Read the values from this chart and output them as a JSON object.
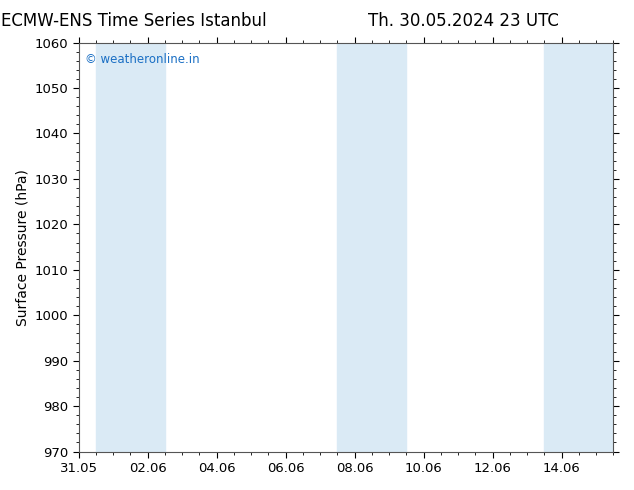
{
  "title_left": "ECMW-ENS Time Series Istanbul",
  "title_right": "Th. 30.05.2024 23 UTC",
  "ylabel": "Surface Pressure (hPa)",
  "ylim": [
    970,
    1060
  ],
  "yticks": [
    970,
    980,
    990,
    1000,
    1010,
    1020,
    1030,
    1040,
    1050,
    1060
  ],
  "xtick_labels": [
    "31.05",
    "02.06",
    "04.06",
    "06.06",
    "08.06",
    "10.06",
    "12.06",
    "14.06"
  ],
  "xtick_positions": [
    0,
    2,
    4,
    6,
    8,
    10,
    12,
    14
  ],
  "xlim": [
    0,
    15.5
  ],
  "shaded_bands": [
    {
      "x_start": 0.5,
      "x_end": 2.5,
      "color": "#daeaf5"
    },
    {
      "x_start": 7.5,
      "x_end": 9.5,
      "color": "#daeaf5"
    },
    {
      "x_start": 13.5,
      "x_end": 15.5,
      "color": "#daeaf5"
    }
  ],
  "watermark_text": "© weatheronline.in",
  "watermark_color": "#1a6fc4",
  "bg_color": "#ffffff",
  "title_fontsize": 12,
  "axis_label_fontsize": 10,
  "tick_fontsize": 9.5,
  "spine_color": "#555555"
}
